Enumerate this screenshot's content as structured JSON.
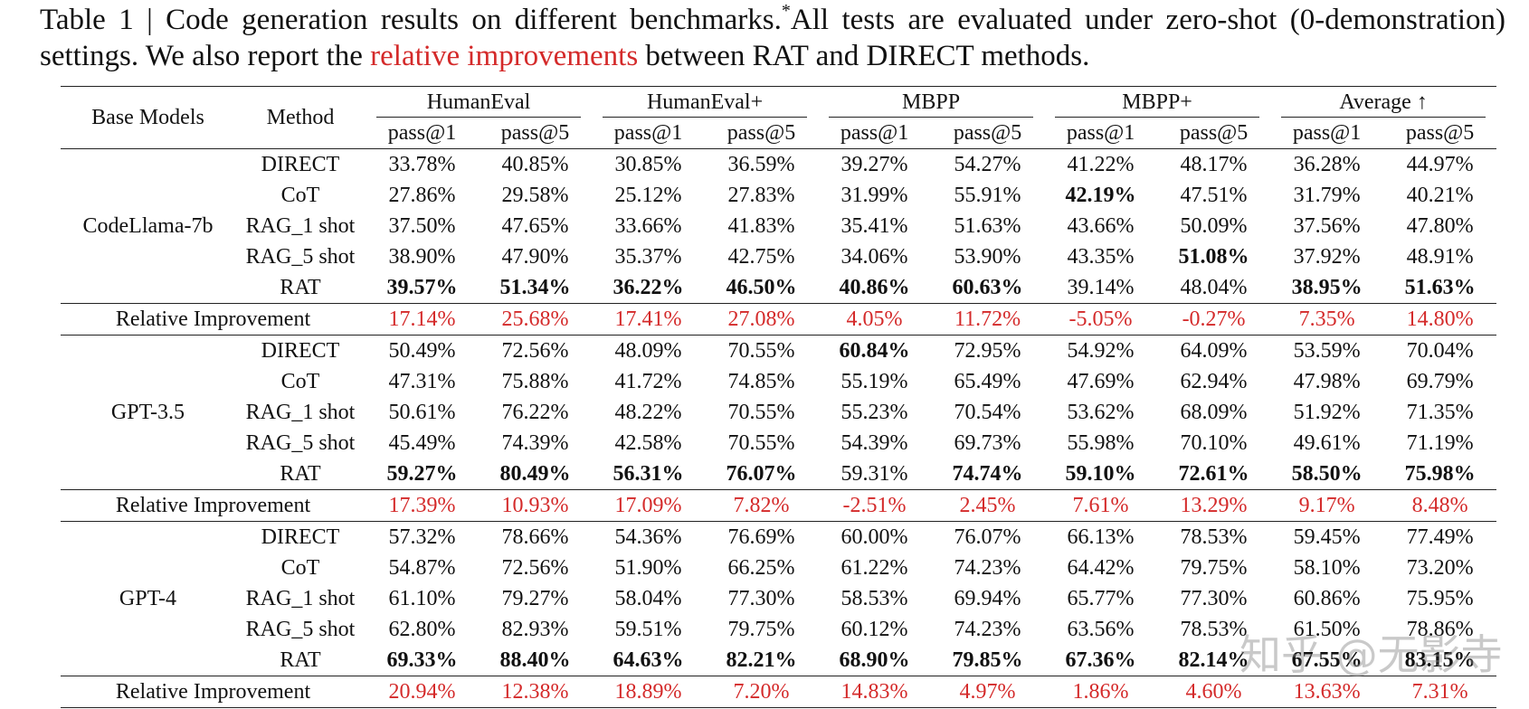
{
  "caption": {
    "prefix": "Table 1 | Code generation results on different benchmarks.",
    "sup": "*",
    "middle": "All tests are evaluated under zero-shot (0-demonstration) settings. We also report the ",
    "highlight": "relative improvements",
    "suffix": " between RAT and DIRECT methods."
  },
  "table": {
    "header": {
      "base_models": "Base Models",
      "method": "Method",
      "benchmarks": [
        {
          "name": "HumanEval",
          "metrics": [
            "pass@1",
            "pass@5"
          ]
        },
        {
          "name": "HumanEval+",
          "metrics": [
            "pass@1",
            "pass@5"
          ]
        },
        {
          "name": "MBPP",
          "metrics": [
            "pass@1",
            "pass@5"
          ]
        },
        {
          "name": "MBPP+",
          "metrics": [
            "pass@1",
            "pass@5"
          ]
        },
        {
          "name": "Average ↑",
          "metrics": [
            "pass@1",
            "pass@5"
          ]
        }
      ]
    },
    "groups": [
      {
        "model": "CodeLlama-7b",
        "rows": [
          {
            "method": "DIRECT",
            "cells": [
              "33.78%",
              "40.85%",
              "30.85%",
              "36.59%",
              "39.27%",
              "54.27%",
              "41.22%",
              "48.17%",
              "36.28%",
              "44.97%"
            ],
            "bold": []
          },
          {
            "method": "CoT",
            "cells": [
              "27.86%",
              "29.58%",
              "25.12%",
              "27.83%",
              "31.99%",
              "55.91%",
              "42.19%",
              "47.51%",
              "31.79%",
              "40.21%"
            ],
            "bold": [
              6
            ]
          },
          {
            "method": "RAG_1 shot",
            "cells": [
              "37.50%",
              "47.65%",
              "33.66%",
              "41.83%",
              "35.41%",
              "51.63%",
              "43.66%",
              "50.09%",
              "37.56%",
              "47.80%"
            ],
            "bold": []
          },
          {
            "method": "RAG_5 shot",
            "cells": [
              "38.90%",
              "47.90%",
              "35.37%",
              "42.75%",
              "34.06%",
              "53.90%",
              "43.35%",
              "51.08%",
              "37.92%",
              "48.91%"
            ],
            "bold": [
              7
            ]
          },
          {
            "method": "RAT",
            "cells": [
              "39.57%",
              "51.34%",
              "36.22%",
              "46.50%",
              "40.86%",
              "60.63%",
              "39.14%",
              "48.04%",
              "38.95%",
              "51.63%"
            ],
            "bold": [
              0,
              1,
              2,
              3,
              4,
              5,
              8,
              9
            ]
          }
        ],
        "improvement": {
          "label": "Relative Improvement",
          "cells": [
            "17.14%",
            "25.68%",
            "17.41%",
            "27.08%",
            "4.05%",
            "11.72%",
            "-5.05%",
            "-0.27%",
            "7.35%",
            "14.80%"
          ]
        }
      },
      {
        "model": "GPT-3.5",
        "rows": [
          {
            "method": "DIRECT",
            "cells": [
              "50.49%",
              "72.56%",
              "48.09%",
              "70.55%",
              "60.84%",
              "72.95%",
              "54.92%",
              "64.09%",
              "53.59%",
              "70.04%"
            ],
            "bold": [
              4
            ]
          },
          {
            "method": "CoT",
            "cells": [
              "47.31%",
              "75.88%",
              "41.72%",
              "74.85%",
              "55.19%",
              "65.49%",
              "47.69%",
              "62.94%",
              "47.98%",
              "69.79%"
            ],
            "bold": []
          },
          {
            "method": "RAG_1 shot",
            "cells": [
              "50.61%",
              "76.22%",
              "48.22%",
              "70.55%",
              "55.23%",
              "70.54%",
              "53.62%",
              "68.09%",
              "51.92%",
              "71.35%"
            ],
            "bold": []
          },
          {
            "method": "RAG_5 shot",
            "cells": [
              "45.49%",
              "74.39%",
              "42.58%",
              "70.55%",
              "54.39%",
              "69.73%",
              "55.98%",
              "70.10%",
              "49.61%",
              "71.19%"
            ],
            "bold": []
          },
          {
            "method": "RAT",
            "cells": [
              "59.27%",
              "80.49%",
              "56.31%",
              "76.07%",
              "59.31%",
              "74.74%",
              "59.10%",
              "72.61%",
              "58.50%",
              "75.98%"
            ],
            "bold": [
              0,
              1,
              2,
              3,
              5,
              6,
              7,
              8,
              9
            ]
          }
        ],
        "improvement": {
          "label": "Relative Improvement",
          "cells": [
            "17.39%",
            "10.93%",
            "17.09%",
            "7.82%",
            "-2.51%",
            "2.45%",
            "7.61%",
            "13.29%",
            "9.17%",
            "8.48%"
          ]
        }
      },
      {
        "model": "GPT-4",
        "rows": [
          {
            "method": "DIRECT",
            "cells": [
              "57.32%",
              "78.66%",
              "54.36%",
              "76.69%",
              "60.00%",
              "76.07%",
              "66.13%",
              "78.53%",
              "59.45%",
              "77.49%"
            ],
            "bold": []
          },
          {
            "method": "CoT",
            "cells": [
              "54.87%",
              "72.56%",
              "51.90%",
              "66.25%",
              "61.22%",
              "74.23%",
              "64.42%",
              "79.75%",
              "58.10%",
              "73.20%"
            ],
            "bold": []
          },
          {
            "method": "RAG_1 shot",
            "cells": [
              "61.10%",
              "79.27%",
              "58.04%",
              "77.30%",
              "58.53%",
              "69.94%",
              "65.77%",
              "77.30%",
              "60.86%",
              "75.95%"
            ],
            "bold": []
          },
          {
            "method": "RAG_5 shot",
            "cells": [
              "62.80%",
              "82.93%",
              "59.51%",
              "79.75%",
              "60.12%",
              "74.23%",
              "63.56%",
              "78.53%",
              "61.50%",
              "78.86%"
            ],
            "bold": []
          },
          {
            "method": "RAT",
            "cells": [
              "69.33%",
              "88.40%",
              "64.63%",
              "82.21%",
              "68.90%",
              "79.85%",
              "67.36%",
              "82.14%",
              "67.55%",
              "83.15%"
            ],
            "bold": [
              0,
              1,
              2,
              3,
              4,
              5,
              6,
              7,
              8,
              9
            ]
          }
        ],
        "improvement": {
          "label": "Relative Improvement",
          "cells": [
            "20.94%",
            "12.38%",
            "18.89%",
            "7.20%",
            "14.83%",
            "4.97%",
            "1.86%",
            "4.60%",
            "13.63%",
            "7.31%"
          ]
        }
      }
    ]
  },
  "watermark": "知乎 @无影寺"
}
